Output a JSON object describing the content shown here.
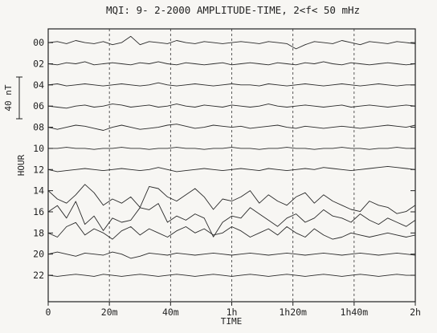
{
  "chart_data": {
    "type": "line",
    "title": "MQI:  9- 2-2000   AMPLITUDE-TIME,   2<f< 50 mHz",
    "xlabel": "TIME",
    "ylabel": "HOUR",
    "scale_label": "40 nT",
    "scale_nT": 40,
    "x_tick_labels": [
      "0",
      "20m",
      "40m",
      "1h",
      "1h20m",
      "1h40m",
      "2h"
    ],
    "x_ticks_min": [
      0,
      20,
      40,
      60,
      80,
      100,
      120
    ],
    "xlim_min": [
      0,
      120
    ],
    "grid_vertical_dashed": true,
    "y_tick_labels": [
      "00",
      "02",
      "04",
      "06",
      "08",
      "10",
      "12",
      "14",
      "16",
      "18",
      "20",
      "22"
    ],
    "y_ticks_hour": [
      0,
      2,
      4,
      6,
      8,
      10,
      12,
      14,
      16,
      18,
      20,
      22
    ],
    "ylim_hour": [
      -1.3,
      24.5
    ],
    "sample_times_min": [
      0,
      3,
      6,
      9,
      12,
      15,
      18,
      21,
      24,
      27,
      30,
      33,
      36,
      39,
      42,
      45,
      48,
      51,
      54,
      57,
      60,
      63,
      66,
      69,
      72,
      75,
      78,
      81,
      84,
      87,
      90,
      93,
      96,
      99,
      102,
      105,
      108,
      111,
      114,
      117,
      120
    ],
    "series": [
      {
        "hour": 0,
        "values_nT": [
          0,
          1,
          -1,
          2,
          0,
          -1,
          1,
          -2,
          0,
          6,
          -2,
          1,
          0,
          -1,
          2,
          0,
          -1,
          1,
          0,
          -1,
          0,
          1,
          0,
          -1,
          1,
          0,
          -1,
          -6,
          -2,
          1,
          0,
          -1,
          2,
          0,
          -2,
          1,
          0,
          -1,
          1,
          0,
          -1
        ]
      },
      {
        "hour": 2,
        "values_nT": [
          0,
          -1,
          1,
          0,
          2,
          -1,
          0,
          1,
          0,
          -1,
          1,
          0,
          2,
          0,
          -1,
          1,
          0,
          -1,
          0,
          1,
          -1,
          0,
          1,
          0,
          -1,
          1,
          0,
          -1,
          1,
          0,
          2,
          0,
          -1,
          1,
          0,
          -1,
          0,
          1,
          0,
          -1,
          0
        ]
      },
      {
        "hour": 4,
        "values_nT": [
          0,
          1,
          -1,
          0,
          1,
          0,
          -1,
          0,
          1,
          0,
          -1,
          0,
          2,
          0,
          -1,
          0,
          1,
          0,
          -1,
          0,
          1,
          0,
          0,
          -1,
          1,
          0,
          -1,
          0,
          1,
          0,
          -1,
          0,
          1,
          0,
          -1,
          0,
          1,
          0,
          -1,
          0,
          0
        ]
      },
      {
        "hour": 6,
        "values_nT": [
          0,
          -1,
          -2,
          0,
          1,
          -1,
          0,
          2,
          1,
          -1,
          0,
          1,
          -1,
          0,
          2,
          0,
          -1,
          1,
          0,
          -1,
          1,
          0,
          -1,
          0,
          2,
          0,
          -1,
          0,
          1,
          0,
          -1,
          0,
          1,
          -1,
          0,
          1,
          0,
          -1,
          0,
          1,
          0
        ]
      },
      {
        "hour": 8,
        "values_nT": [
          0,
          -2,
          0,
          2,
          1,
          -1,
          -3,
          0,
          2,
          0,
          -2,
          -1,
          0,
          2,
          3,
          1,
          -1,
          0,
          2,
          1,
          0,
          1,
          -1,
          0,
          1,
          2,
          0,
          -1,
          1,
          0,
          -1,
          0,
          1,
          0,
          -1,
          0,
          1,
          2,
          1,
          0,
          2
        ]
      },
      {
        "hour": 10,
        "values_nT": [
          0,
          0,
          1,
          0,
          0,
          -1,
          0,
          0,
          1,
          0,
          0,
          -1,
          0,
          0,
          1,
          0,
          0,
          -1,
          0,
          0,
          1,
          0,
          0,
          -1,
          0,
          0,
          1,
          0,
          0,
          -1,
          0,
          0,
          1,
          0,
          0,
          -1,
          0,
          0,
          1,
          0,
          0
        ]
      },
      {
        "hour": 12,
        "values_nT": [
          0,
          -2,
          -1,
          0,
          1,
          0,
          -1,
          0,
          1,
          0,
          -1,
          0,
          2,
          0,
          -2,
          -1,
          0,
          1,
          0,
          -1,
          0,
          1,
          0,
          -1,
          1,
          0,
          -1,
          0,
          1,
          0,
          2,
          1,
          0,
          -1,
          0,
          1,
          2,
          3,
          2,
          1,
          0
        ]
      },
      {
        "hour": 14,
        "values_nT": [
          0,
          -8,
          -12,
          -4,
          6,
          -2,
          -14,
          -8,
          -12,
          -6,
          -16,
          4,
          2,
          -6,
          -10,
          -4,
          2,
          -6,
          -18,
          -8,
          -10,
          -6,
          0,
          -12,
          -4,
          -10,
          -14,
          -6,
          -2,
          -12,
          -4,
          -10,
          -14,
          -18,
          -20,
          -10,
          -14,
          -16,
          -22,
          -20,
          -14
        ]
      },
      {
        "hour": 16,
        "values_nT": [
          0,
          6,
          -6,
          10,
          -12,
          -4,
          -18,
          -6,
          -10,
          -8,
          4,
          2,
          8,
          -10,
          -4,
          -8,
          -2,
          -6,
          -24,
          -10,
          -4,
          -6,
          4,
          -2,
          -8,
          -14,
          -6,
          -2,
          -10,
          -6,
          2,
          -4,
          -6,
          -10,
          -2,
          -8,
          -12,
          -6,
          -10,
          -14,
          -8
        ]
      },
      {
        "hour": 18,
        "values_nT": [
          0,
          -4,
          6,
          10,
          -2,
          4,
          0,
          -6,
          2,
          6,
          -2,
          4,
          0,
          -4,
          2,
          6,
          0,
          4,
          -2,
          0,
          6,
          2,
          -4,
          0,
          4,
          -2,
          6,
          0,
          -4,
          4,
          -2,
          -6,
          -4,
          0,
          -2,
          -4,
          -2,
          0,
          -2,
          -4,
          -2
        ]
      },
      {
        "hour": 20,
        "values_nT": [
          0,
          2,
          0,
          -2,
          1,
          0,
          -1,
          2,
          0,
          -4,
          -2,
          1,
          0,
          -1,
          1,
          0,
          -1,
          0,
          1,
          0,
          -1,
          0,
          1,
          0,
          -1,
          0,
          1,
          0,
          -1,
          0,
          1,
          0,
          -1,
          0,
          1,
          0,
          -1,
          0,
          1,
          0,
          -1
        ]
      },
      {
        "hour": 22,
        "values_nT": [
          0,
          -1,
          0,
          1,
          0,
          -1,
          1,
          0,
          -1,
          0,
          1,
          0,
          -1,
          0,
          1,
          0,
          -1,
          0,
          1,
          0,
          -1,
          0,
          1,
          0,
          -1,
          0,
          1,
          0,
          -1,
          0,
          1,
          0,
          -1,
          0,
          1,
          0,
          -1,
          0,
          1,
          0,
          0
        ]
      }
    ]
  }
}
